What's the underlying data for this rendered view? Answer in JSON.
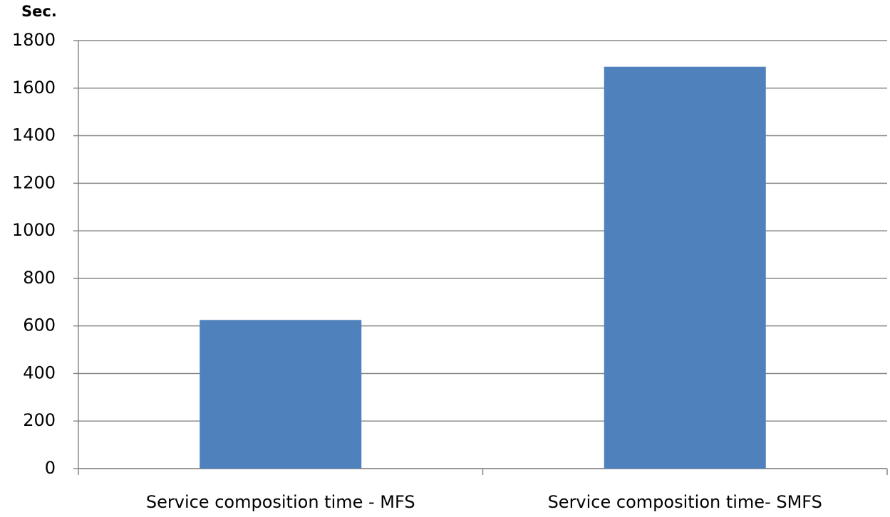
{
  "chart_data": {
    "type": "bar",
    "y_label": "Sec.",
    "categories": [
      "Service composition time - MFS",
      "Service composition time- SMFS"
    ],
    "values": [
      625,
      1690
    ],
    "color": "#4f81bd",
    "ylim": [
      0,
      1800
    ],
    "yticks": [
      0,
      200,
      400,
      600,
      800,
      1000,
      1200,
      1400,
      1600,
      1800
    ],
    "grid": true
  }
}
